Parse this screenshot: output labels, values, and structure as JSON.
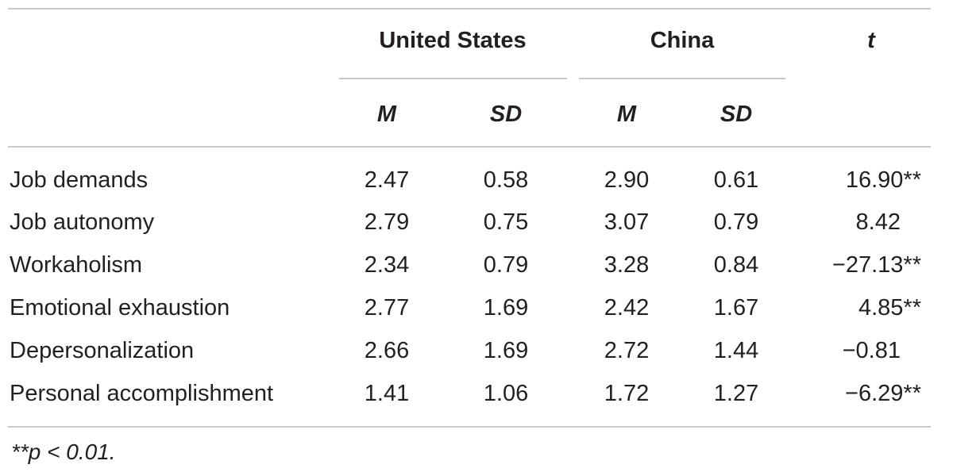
{
  "table": {
    "group_headers": {
      "us": "United States",
      "china": "China",
      "t": "t"
    },
    "sub_headers": {
      "us_m": "M",
      "us_sd": "SD",
      "china_m": "M",
      "china_sd": "SD"
    },
    "rows": [
      {
        "label": "Job demands",
        "us_m": "2.47",
        "us_sd": "0.58",
        "china_m": "2.90",
        "china_sd": "0.61",
        "t": "16.90**"
      },
      {
        "label": "Job autonomy",
        "us_m": "2.79",
        "us_sd": "0.75",
        "china_m": "3.07",
        "china_sd": "0.79",
        "t": "8.42"
      },
      {
        "label": "Workaholism",
        "us_m": "2.34",
        "us_sd": "0.79",
        "china_m": "3.28",
        "china_sd": "0.84",
        "t": "−27.13**"
      },
      {
        "label": "Emotional exhaustion",
        "us_m": "2.77",
        "us_sd": "1.69",
        "china_m": "2.42",
        "china_sd": "1.67",
        "t": "4.85**"
      },
      {
        "label": "Depersonalization",
        "us_m": "2.66",
        "us_sd": "1.69",
        "china_m": "2.72",
        "china_sd": "1.44",
        "t": "−0.81"
      },
      {
        "label": "Personal accomplishment",
        "us_m": "1.41",
        "us_sd": "1.06",
        "china_m": "1.72",
        "china_sd": "1.27",
        "t": "−6.29**"
      }
    ],
    "footnote": "**p < 0.01."
  }
}
